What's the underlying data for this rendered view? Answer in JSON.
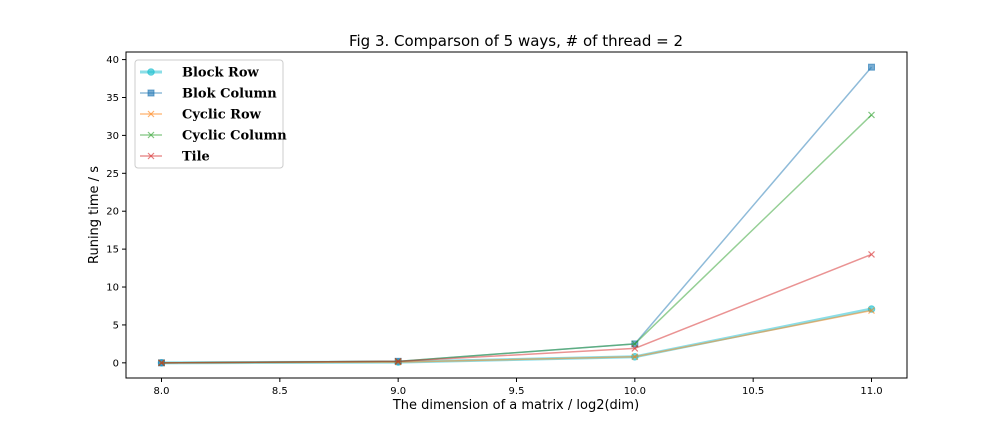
{
  "chart_data": {
    "type": "line",
    "title": "Fig 3. Comparson of 5 ways, # of thread = 2",
    "xlabel": "The dimension of a matrix / log2(dim)",
    "ylabel": "Runing time / s",
    "xlim": [
      7.85,
      11.15
    ],
    "ylim": [
      -2,
      41
    ],
    "xticks": [
      8.0,
      8.5,
      9.0,
      9.5,
      10.0,
      10.5,
      11.0
    ],
    "xtick_labels": [
      "8.0",
      "8.5",
      "9.0",
      "9.5",
      "10.0",
      "10.5",
      "11.0"
    ],
    "yticks": [
      0,
      5,
      10,
      15,
      20,
      25,
      30,
      35,
      40
    ],
    "ytick_labels": [
      "0",
      "5",
      "10",
      "15",
      "20",
      "25",
      "30",
      "35",
      "40"
    ],
    "grid": false,
    "legend_position": "top-left",
    "x": [
      8,
      9,
      10,
      11
    ],
    "series": [
      {
        "name": "Block Row",
        "values": [
          0.0,
          0.1,
          0.8,
          7.1
        ],
        "color": "#17becf",
        "marker": "circle",
        "line_width": 3
      },
      {
        "name": "Blok Column",
        "values": [
          0.0,
          0.2,
          2.5,
          39.0
        ],
        "color": "#1f77b4",
        "marker": "square",
        "line_width": 1.5
      },
      {
        "name": "Cyclic Row",
        "values": [
          0.0,
          0.1,
          0.8,
          6.9
        ],
        "color": "#ff7f0e",
        "marker": "x",
        "line_width": 1.5
      },
      {
        "name": "Cyclic Column",
        "values": [
          0.0,
          0.2,
          2.5,
          32.7
        ],
        "color": "#2ca02c",
        "marker": "x",
        "line_width": 1.5
      },
      {
        "name": "Tile",
        "values": [
          0.0,
          0.2,
          1.9,
          14.3
        ],
        "color": "#d62728",
        "marker": "x",
        "line_width": 1.5
      }
    ]
  }
}
